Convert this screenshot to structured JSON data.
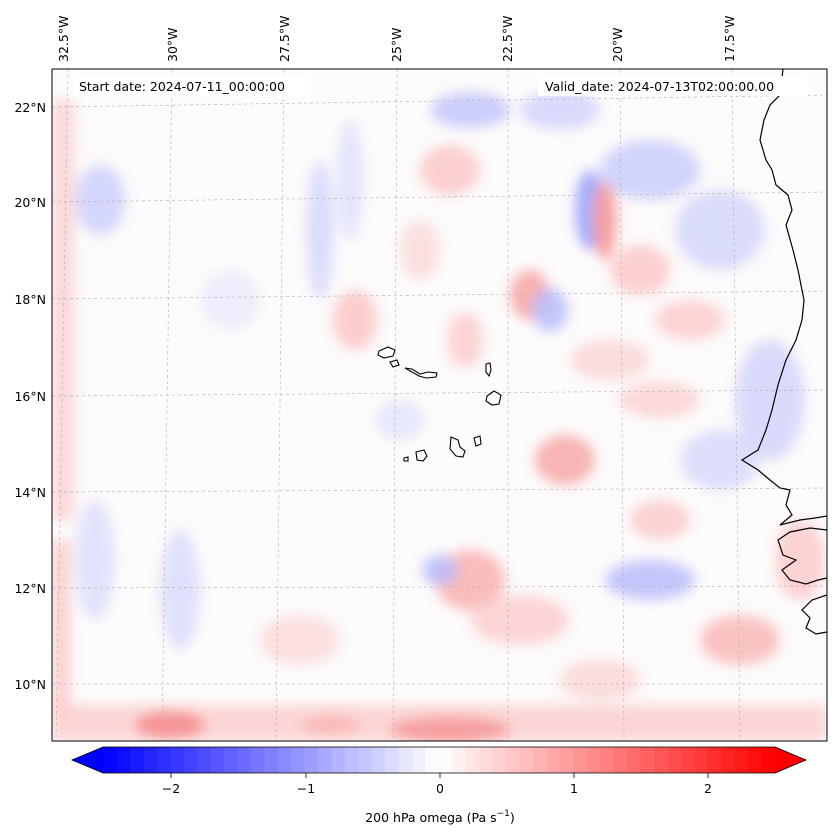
{
  "header": {
    "start_date": "Start date: 2024-07-11_00:00:00",
    "valid_date": "Valid_date: 2024-07-13T02:00:00.00"
  },
  "longitude_labels": [
    "32.5°W",
    "30°W",
    "27.5°W",
    "25°W",
    "22.5°W",
    "20°W",
    "17.5°W"
  ],
  "latitude_labels": [
    "22°N",
    "20°N",
    "18°N",
    "16°N",
    "14°N",
    "12°N",
    "10°N"
  ],
  "colorbar": {
    "label_prefix": "200 hPa omega (Pa s",
    "label_exp": "−1",
    "label_suffix": ")",
    "ticks": [
      "−2",
      "−1",
      "0",
      "1",
      "2"
    ],
    "range": [
      -2.6,
      2.6
    ],
    "colormap": "bwr",
    "extend": "both",
    "min_color": "#0000ff",
    "mid_color": "#ffffff",
    "max_color": "#ff0000"
  },
  "map": {
    "projection": "lambert_conformal",
    "lon_range": [
      -33,
      -15.8
    ],
    "lat_range": [
      8.8,
      22.8
    ],
    "coastline_color": "#000000",
    "gridline_color": "#b0b0b0",
    "gridline_style": "dashed"
  }
}
